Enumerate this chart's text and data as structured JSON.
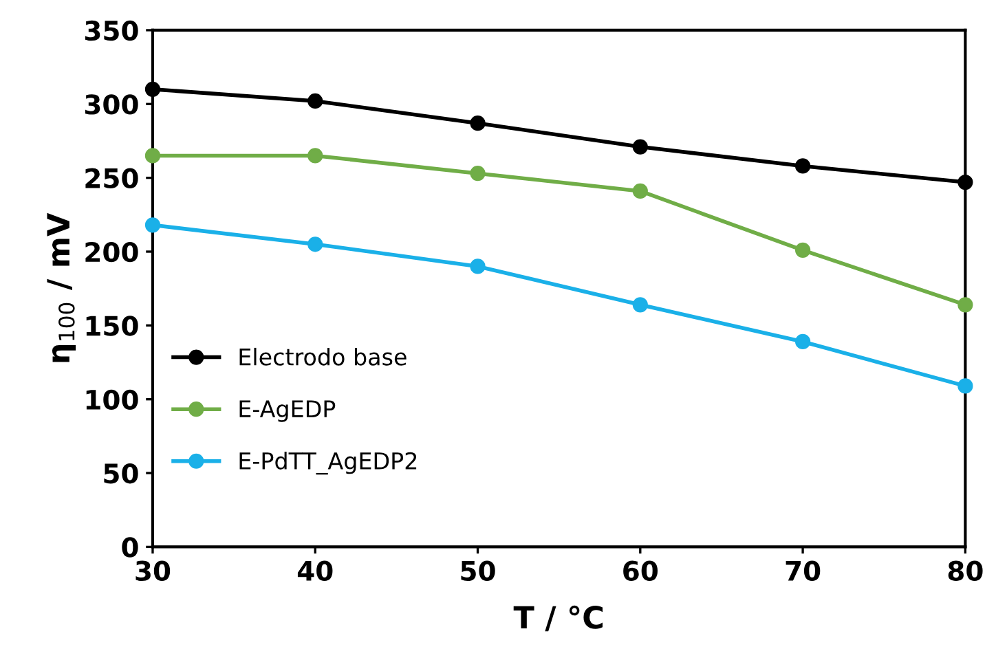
{
  "chart_data": {
    "type": "line",
    "xlabel": "T / °C",
    "ylabel": "η$_{100}$ / mV",
    "x": [
      30,
      40,
      50,
      60,
      70,
      80
    ],
    "series": [
      {
        "name": "Electrodo base",
        "color": "#000000",
        "values": [
          310,
          302,
          287,
          271,
          258,
          247
        ]
      },
      {
        "name": "E-AgEDP",
        "color": "#70ad47",
        "values": [
          265,
          265,
          253,
          241,
          201,
          164
        ]
      },
      {
        "name": "E-PdTT_AgEDP2",
        "color": "#1ab0e8",
        "values": [
          218,
          205,
          190,
          164,
          139,
          109
        ]
      }
    ],
    "xlim": [
      30,
      80
    ],
    "xticks": [
      30,
      40,
      50,
      60,
      70,
      80
    ],
    "ylim": [
      0,
      350
    ],
    "yticks": [
      0,
      50,
      100,
      150,
      200,
      250,
      300,
      350
    ],
    "grid": false,
    "legend": "bottom left",
    "marker": "circle",
    "line_style": "solid"
  }
}
